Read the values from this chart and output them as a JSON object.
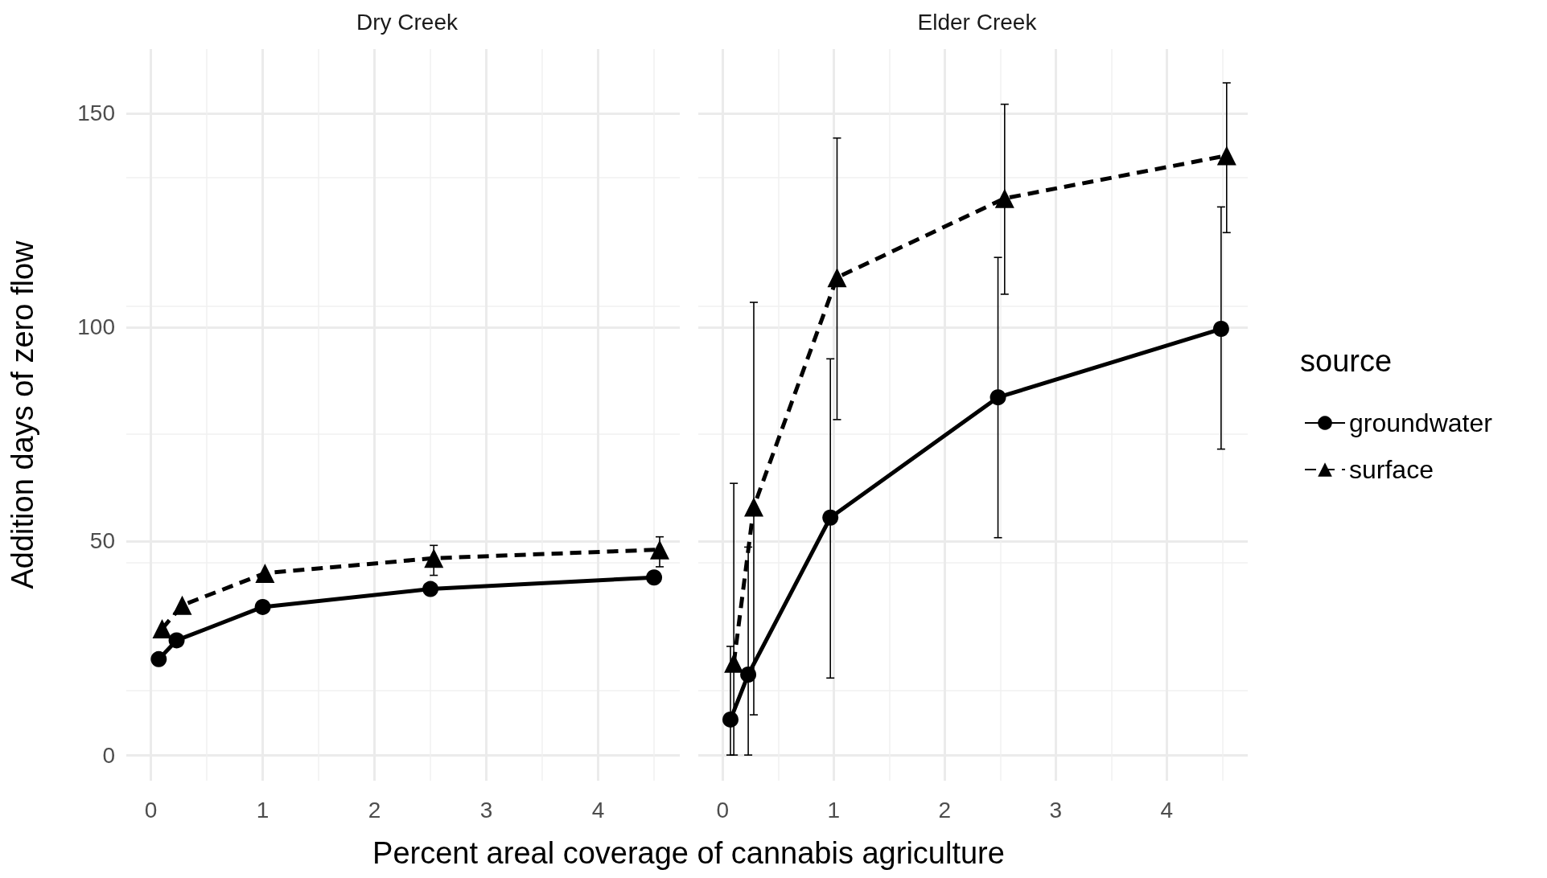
{
  "chart_data": [
    {
      "type": "line",
      "title": "Dry Creek",
      "xlabel": "Percent areal coverage of cannabis agriculture",
      "ylabel": "Addition days of zero flow",
      "xlim": [
        -0.22,
        4.73
      ],
      "xticks": [
        0,
        1,
        2,
        3,
        4
      ],
      "ylim": [
        -6,
        165
      ],
      "yticks": [
        0,
        50,
        100,
        150
      ],
      "grid": true,
      "legend": false,
      "series": [
        {
          "color": "#000000",
          "marker": "circle",
          "line_style": "solid",
          "x": [
            0.07,
            0.23,
            1,
            2.5,
            4.5
          ],
          "values": [
            22.4,
            26.8,
            34.6,
            38.8,
            41.5
          ]
        },
        {
          "color": "#000000",
          "marker": "triangle",
          "line_style": "dashed",
          "x": [
            0.1,
            0.28,
            1.02,
            2.53,
            4.55
          ],
          "values": [
            29.5,
            35,
            42.5,
            46,
            48
          ],
          "errors": [
            null,
            null,
            null,
            [
              42,
              49
            ],
            [
              44,
              51
            ]
          ]
        }
      ]
    },
    {
      "type": "line",
      "title": "Elder Creek",
      "xlim": [
        -0.22,
        4.73
      ],
      "xticks": [
        0,
        1,
        2,
        3,
        4
      ],
      "ylim": [
        -6,
        165
      ],
      "yticks": [
        0,
        50,
        100,
        150
      ],
      "grid": true,
      "legend": "right",
      "legend_title": "source",
      "tick_labels": "x",
      "series": [
        {
          "name": "groundwater",
          "color": "#000000",
          "marker": "circle",
          "line_style": "solid",
          "x": [
            0.07,
            0.23,
            0.97,
            2.48,
            4.49
          ],
          "values": [
            8.3,
            18.8,
            55.5,
            83.6,
            99.6
          ],
          "errors": [
            [
              0,
              25.4
            ],
            [
              0,
              48.6
            ],
            [
              18,
              92.6
            ],
            [
              50.8,
              116.3
            ],
            [
              71.5,
              128.1
            ]
          ]
        },
        {
          "name": "surface",
          "color": "#000000",
          "marker": "triangle",
          "line_style": "dashed",
          "x": [
            0.1,
            0.28,
            1.03,
            2.54,
            4.54
          ],
          "values": [
            21.5,
            58,
            111.6,
            130.1,
            140.1
          ],
          "errors": [
            [
              0,
              63.5
            ],
            [
              9.4,
              105.8
            ],
            [
              78.4,
              144.2
            ],
            [
              107.7,
              152.1
            ],
            [
              122.1,
              157.1
            ]
          ]
        }
      ]
    }
  ]
}
